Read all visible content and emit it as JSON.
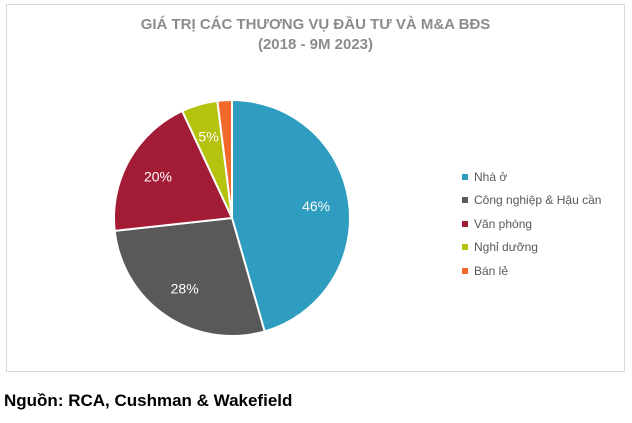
{
  "chart_data": {
    "type": "pie",
    "title": "GIÁ TRỊ CÁC THƯƠNG VỤ ĐẦU TƯ VÀ M&A BĐS",
    "subtitle": "(2018 - 9M 2023)",
    "categories": [
      "Nhà ở",
      "Công nghiệp & Hậu cần",
      "Văn phòng",
      "Nghỉ dưỡng",
      "Bán lẻ"
    ],
    "values": [
      46,
      28,
      20,
      5,
      2
    ],
    "data_labels": [
      "46%",
      "28%",
      "20%",
      "5%",
      ""
    ],
    "colors": [
      "#2e9dbf",
      "#595959",
      "#a31c35",
      "#b5c20e",
      "#f26a2b"
    ],
    "legend_position": "right"
  },
  "source": "Nguồn: RCA, Cushman & Wakefield"
}
